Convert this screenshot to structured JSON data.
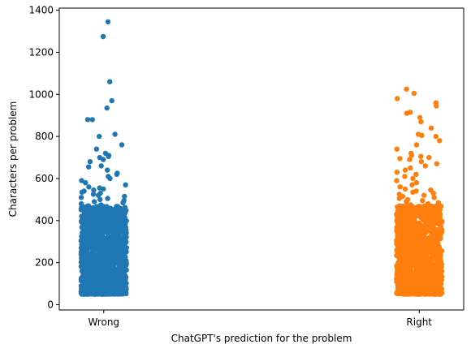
{
  "chart_data": {
    "type": "scatter",
    "subtype": "strip",
    "title": "",
    "xlabel": "ChatGPT's prediction for the problem",
    "ylabel": "Characters per problem",
    "categories": [
      "Wrong",
      "Right"
    ],
    "ylim": [
      -25,
      1410
    ],
    "yticks": [
      0,
      200,
      400,
      600,
      800,
      1000,
      1200,
      1400
    ],
    "grid": false,
    "legend": "none",
    "series": [
      {
        "category": "Wrong",
        "color": "#1f77b4",
        "value_range": [
          50,
          470
        ],
        "outliers": [
          1345,
          1275,
          1060,
          970,
          935,
          880,
          880,
          810,
          800,
          760,
          740,
          720,
          710,
          705,
          700,
          690,
          680,
          660,
          655,
          640,
          625,
          620,
          610,
          600,
          590,
          580,
          570,
          560,
          555,
          550,
          545,
          540,
          535,
          530,
          525,
          520,
          515,
          510,
          505,
          500,
          495,
          490,
          485,
          480,
          475
        ]
      },
      {
        "category": "Right",
        "color": "#ff7f0e",
        "value_range": [
          50,
          470
        ],
        "outliers": [
          1025,
          1005,
          980,
          960,
          945,
          915,
          910,
          890,
          870,
          840,
          810,
          805,
          800,
          780,
          760,
          740,
          720,
          710,
          705,
          700,
          695,
          690,
          680,
          670,
          660,
          650,
          640,
          630,
          620,
          610,
          600,
          590,
          580,
          570,
          560,
          550,
          545,
          540,
          535,
          530,
          525,
          520,
          515,
          510,
          505,
          500,
          495,
          490,
          485,
          480,
          475
        ]
      }
    ]
  }
}
